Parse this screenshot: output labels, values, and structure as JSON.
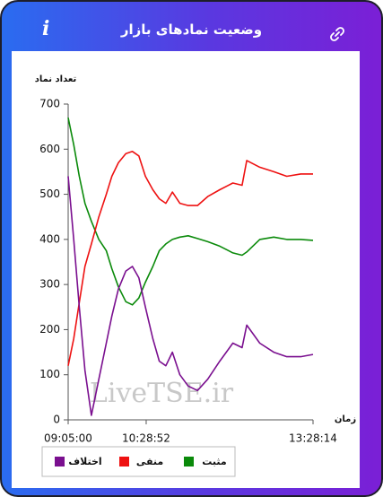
{
  "header": {
    "title": "وضعیت نمادهای بازار"
  },
  "chart_data": {
    "type": "line",
    "y_label": "تعداد نماد",
    "x_label": "زمان",
    "watermark": "LiveTSE.ir",
    "x": [
      "09:05:00",
      "09:11:00",
      "09:17:00",
      "09:23:00",
      "09:30:00",
      "09:38:00",
      "09:46:00",
      "09:52:00",
      "09:59:00",
      "10:07:00",
      "10:14:00",
      "10:21:00",
      "10:28:00",
      "10:36:00",
      "10:43:00",
      "10:50:00",
      "10:57:00",
      "11:05:00",
      "11:14:00",
      "11:24:00",
      "11:35:00",
      "11:48:00",
      "12:02:00",
      "12:12:00",
      "12:17:00",
      "12:31:00",
      "12:46:00",
      "13:00:00",
      "13:15:00",
      "13:28:14"
    ],
    "series": [
      {
        "name": "مثبت",
        "color": "#0a8a0a",
        "values": [
          670,
          610,
          540,
          480,
          440,
          400,
          375,
          335,
          295,
          262,
          255,
          270,
          305,
          340,
          375,
          390,
          400,
          405,
          408,
          402,
          395,
          385,
          370,
          365,
          372,
          400,
          405,
          400,
          400,
          398
        ]
      },
      {
        "name": "منفی",
        "color": "#ee1111",
        "values": [
          120,
          180,
          260,
          340,
          390,
          450,
          500,
          540,
          570,
          590,
          595,
          585,
          540,
          510,
          490,
          480,
          505,
          480,
          475,
          475,
          495,
          510,
          525,
          520,
          575,
          560,
          550,
          540,
          545,
          545
        ]
      },
      {
        "name": "اختلاف",
        "color": "#7a0f8f",
        "values": [
          540,
          400,
          250,
          110,
          10,
          90,
          170,
          230,
          290,
          330,
          340,
          315,
          250,
          180,
          130,
          120,
          150,
          100,
          75,
          65,
          90,
          130,
          170,
          160,
          210,
          170,
          150,
          140,
          140,
          145
        ]
      }
    ],
    "xlim": [
      "09:05:00",
      "13:28:14"
    ],
    "xticks": [
      "09:05:00",
      "10:28:52",
      "13:28:14"
    ],
    "ylim": [
      0,
      700
    ],
    "yticks": [
      0,
      100,
      200,
      300,
      400,
      500,
      600,
      700
    ]
  }
}
